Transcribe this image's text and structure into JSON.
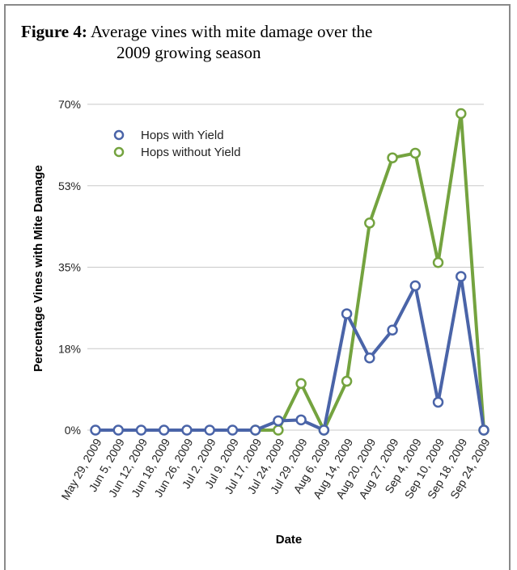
{
  "caption": {
    "label": "Figure 4:",
    "line1": "Average vines with mite damage over the",
    "line2": "2009 growing season"
  },
  "chart_data": {
    "type": "line",
    "title": "",
    "xlabel": "Date",
    "ylabel": "Percentage Vines with Mite Damage",
    "ylim": [
      0,
      70
    ],
    "y_ticks": [
      "0%",
      "18%",
      "35%",
      "53%",
      "70%"
    ],
    "y_tick_values": [
      0,
      17.5,
      35,
      52.5,
      70
    ],
    "grid": true,
    "legend_position": "top-left",
    "categories": [
      "May 29, 2009",
      "Jun 5, 2009",
      "Jun 12, 2009",
      "Jun 18, 2009",
      "Jun 26, 2009",
      "Jul 2, 2009",
      "Jul 9, 2009",
      "Jul 17, 2009",
      "Jul 24, 2009",
      "Jul 29, 2009",
      "Aug 6, 2009",
      "Aug 14, 2009",
      "Aug 20, 2009",
      "Aug 27, 2009",
      "Sep 4, 2009",
      "Sep 10, 2009",
      "Sep 18, 2009",
      "Sep 24, 2009"
    ],
    "series": [
      {
        "name": "Hops with Yield",
        "color": "#4a64a8",
        "values": [
          0,
          0,
          0,
          0,
          0,
          0,
          0,
          0,
          2,
          2.2,
          0,
          25,
          15.5,
          21.5,
          31,
          6,
          33,
          0
        ]
      },
      {
        "name": "Hops without Yield",
        "color": "#74a33f",
        "values": [
          null,
          null,
          null,
          null,
          null,
          null,
          null,
          0,
          0,
          10,
          0,
          10.5,
          44.5,
          58.5,
          59.5,
          36,
          68,
          0
        ]
      }
    ]
  }
}
